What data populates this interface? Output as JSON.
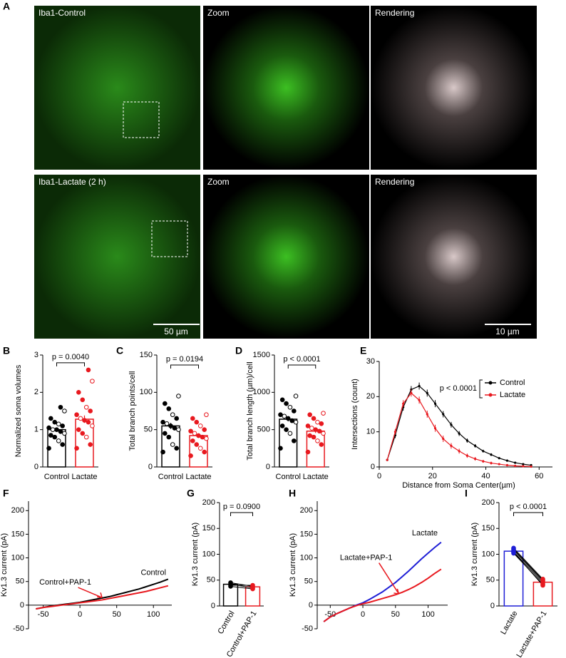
{
  "panel_labels": [
    "A",
    "B",
    "C",
    "D",
    "E",
    "F",
    "G",
    "H",
    "I"
  ],
  "images": [
    {
      "label": "Iba1-Control"
    },
    {
      "label": "Zoom"
    },
    {
      "label": "Rendering"
    },
    {
      "label": "Iba1-Lactate (2 h)"
    },
    {
      "label": "Zoom"
    },
    {
      "label": "Rendering"
    }
  ],
  "scale_bars": [
    "50 µm",
    "10 µm"
  ],
  "chart_data": [
    {
      "type": "bar",
      "y_label": "Normalized soma volumes",
      "categories": [
        "Control",
        "Lactate"
      ],
      "values": [
        1.0,
        1.28
      ],
      "errors": [
        0.05,
        0.1
      ],
      "colors": [
        "#000000",
        "#e8191f"
      ],
      "points": [
        [
          0.5,
          0.6,
          0.7,
          0.8,
          0.85,
          0.9,
          0.95,
          1.0,
          1.0,
          1.05,
          1.1,
          1.15,
          1.2,
          1.3,
          1.5,
          1.6
        ],
        [
          0.5,
          0.6,
          0.8,
          0.9,
          1.0,
          1.1,
          1.2,
          1.25,
          1.3,
          1.4,
          1.5,
          1.6,
          1.8,
          2.0,
          2.3,
          2.6
        ]
      ],
      "ylim": [
        0,
        3
      ],
      "yticks": [
        0,
        1,
        2,
        3
      ],
      "annotation": "p = 0.0040"
    },
    {
      "type": "bar",
      "y_label": "Total branch points/cell",
      "categories": [
        "Control",
        "Lactate"
      ],
      "values": [
        55,
        42
      ],
      "errors": [
        4,
        3
      ],
      "colors": [
        "#000000",
        "#e8191f"
      ],
      "points": [
        [
          20,
          25,
          30,
          40,
          45,
          50,
          52,
          55,
          58,
          60,
          65,
          70,
          78,
          85,
          95
        ],
        [
          15,
          20,
          25,
          30,
          35,
          38,
          40,
          42,
          45,
          48,
          50,
          55,
          60,
          65,
          70
        ]
      ],
      "ylim": [
        0,
        150
      ],
      "yticks": [
        0,
        50,
        100,
        150
      ],
      "annotation": "p = 0.0194"
    },
    {
      "type": "bar",
      "y_label": "Total branch length (µm)/cell",
      "categories": [
        "Control",
        "Lactate"
      ],
      "values": [
        640,
        480
      ],
      "errors": [
        30,
        25
      ],
      "colors": [
        "#000000",
        "#e8191f"
      ],
      "points": [
        [
          250,
          350,
          450,
          500,
          550,
          600,
          620,
          650,
          680,
          700,
          750,
          800,
          850,
          900,
          950
        ],
        [
          200,
          300,
          350,
          400,
          420,
          450,
          480,
          500,
          520,
          550,
          580,
          600,
          650,
          700,
          720
        ]
      ],
      "ylim": [
        0,
        1500
      ],
      "yticks": [
        0,
        500,
        1000,
        1500
      ],
      "annotation": "p < 0.0001"
    },
    {
      "type": "line",
      "x_label": "Distance from Soma Center(µm)",
      "y_label": "Intersections (count)",
      "xlim": [
        0,
        65
      ],
      "xticks": [
        0,
        20,
        40,
        60
      ],
      "ylim": [
        0,
        30
      ],
      "yticks": [
        0,
        10,
        20,
        30
      ],
      "legend": "right",
      "annotation": "p < 0.0001",
      "markers": true,
      "x": [
        3,
        6,
        9,
        12,
        15,
        18,
        21,
        24,
        27,
        30,
        33,
        36,
        39,
        42,
        45,
        48,
        51,
        54,
        57
      ],
      "series": [
        {
          "name": "Control",
          "color": "#000000",
          "values": [
            2,
            9,
            17,
            22,
            23,
            21,
            18,
            15,
            12,
            9.5,
            7.5,
            6,
            4.5,
            3.5,
            2.5,
            1.8,
            1.2,
            0.8,
            0.5
          ],
          "errors": [
            0.3,
            0.8,
            1,
            1,
            1,
            1,
            1,
            0.9,
            0.8,
            0.7,
            0.6,
            0.5,
            0.4,
            0.4,
            0.3,
            0.3,
            0.2,
            0.2,
            0.2
          ]
        },
        {
          "name": "Lactate",
          "color": "#e8191f",
          "values": [
            2,
            10,
            18,
            21,
            19,
            15,
            11,
            8,
            6,
            4.5,
            3.2,
            2.3,
            1.6,
            1.1,
            0.8,
            0.5,
            0.3,
            0.2,
            0.1
          ],
          "errors": [
            0.3,
            0.8,
            1,
            1,
            1,
            1,
            1,
            0.9,
            0.8,
            0.7,
            0.6,
            0.5,
            0.4,
            0.4,
            0.3,
            0.3,
            0.2,
            0.2,
            0.2
          ]
        }
      ]
    },
    {
      "type": "line",
      "y_label": "Kv1.3 current (pA)",
      "xlim": [
        -70,
        125
      ],
      "xticks": [
        -50,
        0,
        50,
        100
      ],
      "ylim": [
        -50,
        220
      ],
      "yticks": [
        -50,
        0,
        50,
        100,
        150,
        200
      ],
      "x": [
        -60,
        -50,
        -40,
        -30,
        -20,
        -10,
        0,
        10,
        20,
        30,
        40,
        50,
        60,
        70,
        80,
        90,
        100,
        110,
        120
      ],
      "series": [
        {
          "name": "Control",
          "color": "#000000",
          "values": [
            -8,
            -5,
            -2,
            0,
            2,
            4,
            6,
            9,
            12,
            15,
            18,
            22,
            26,
            30,
            34,
            39,
            44,
            49,
            55
          ]
        },
        {
          "name": "Control+PAP-1",
          "color": "#e8191f",
          "values": [
            -8,
            -5,
            -3,
            -1,
            1,
            3,
            5,
            7,
            9,
            11,
            14,
            17,
            20,
            23,
            26,
            29,
            33,
            37,
            41
          ]
        }
      ]
    },
    {
      "type": "bar",
      "y_label": "Kv1.3 current (pA)",
      "categories": [
        "Control",
        "Control+PAP-1"
      ],
      "values": [
        42,
        37
      ],
      "errors": [
        3,
        3
      ],
      "colors": [
        "#000000",
        "#e8191f"
      ],
      "points": [
        [
          45,
          40,
          42,
          38
        ],
        [
          38,
          40,
          35,
          33
        ]
      ],
      "paired": true,
      "rotate_labels": true,
      "ylim": [
        0,
        200
      ],
      "yticks": [
        0,
        50,
        100,
        150,
        200
      ],
      "annotation": "p = 0.0900"
    },
    {
      "type": "line",
      "y_label": "Kv1.3 current (pA)",
      "xlim": [
        -70,
        130
      ],
      "xticks": [
        -50,
        0,
        50,
        100
      ],
      "ylim": [
        -50,
        220
      ],
      "yticks": [
        -50,
        0,
        50,
        100,
        150,
        200
      ],
      "x": [
        -60,
        -50,
        -40,
        -30,
        -20,
        -10,
        0,
        10,
        20,
        30,
        40,
        50,
        60,
        70,
        80,
        90,
        100,
        110,
        120
      ],
      "series": [
        {
          "name": "Lactate",
          "color": "#1f1fd6",
          "values": [
            -35,
            -25,
            -18,
            -12,
            -6,
            0,
            5,
            12,
            20,
            28,
            38,
            48,
            60,
            72,
            85,
            98,
            110,
            122,
            133
          ]
        },
        {
          "name": "Lactate+PAP-1",
          "color": "#e8191f",
          "values": [
            -35,
            -25,
            -18,
            -12,
            -6,
            -1,
            3,
            6,
            10,
            14,
            18,
            22,
            27,
            33,
            40,
            48,
            57,
            67,
            76
          ]
        }
      ]
    },
    {
      "type": "bar",
      "y_label": "Kv1.3 current (pA)",
      "categories": [
        "Lactate",
        "Lactate+PAP-1"
      ],
      "values": [
        106,
        46
      ],
      "errors": [
        3,
        3
      ],
      "colors": [
        "#1f1fd6",
        "#e8191f"
      ],
      "points": [
        [
          102,
          105,
          108,
          110,
          112,
          104
        ],
        [
          42,
          45,
          48,
          50,
          52,
          40
        ]
      ],
      "paired": true,
      "rotate_labels": true,
      "ylim": [
        0,
        200
      ],
      "yticks": [
        0,
        50,
        100,
        150,
        200
      ],
      "annotation": "p < 0.0001"
    }
  ]
}
